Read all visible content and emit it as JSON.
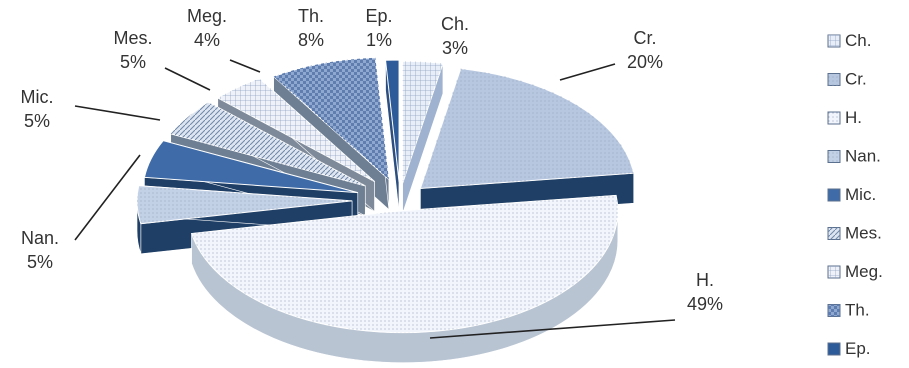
{
  "chart_data": {
    "type": "pie",
    "style": "3d-exploded",
    "title": "",
    "categories": [
      "Ch.",
      "Cr.",
      "H.",
      "Nan.",
      "Mic.",
      "Mes.",
      "Meg.",
      "Th.",
      "Ep."
    ],
    "values": [
      3,
      20,
      49,
      5,
      5,
      5,
      4,
      8,
      1
    ],
    "percent_labels": [
      "3%",
      "20%",
      "49%",
      "5%",
      "5%",
      "5%",
      "4%",
      "8%",
      "1%"
    ],
    "legend": {
      "position": "right",
      "entries": [
        "Ch.",
        "Cr.",
        "H.",
        "Nan.",
        "Mic.",
        "Mes.",
        "Meg.",
        "Th.",
        "Ep."
      ]
    },
    "colors": {
      "Ch.": "#e8eef7",
      "Cr.": "#b7c7e0",
      "H.": "#f2f6fc",
      "Nan.": "#c3d1e6",
      "Mic.": "#3f6ca8",
      "Mes.": "#dde5f0",
      "Meg.": "#eef2f8",
      "Th.": "#8fa8d0",
      "Ep.": "#2d5a98"
    },
    "side_colors": {
      "Ch.": "#9fb2cf",
      "Cr.": "#1f3f66",
      "H.": "#b9c4d3",
      "Nan.": "#1f3f66",
      "Mic.": "#1f3f66",
      "Mes.": "#6e7f94",
      "Meg.": "#7e8a99",
      "Th.": "#6e7f94",
      "Ep.": "#2d4f7f"
    }
  }
}
